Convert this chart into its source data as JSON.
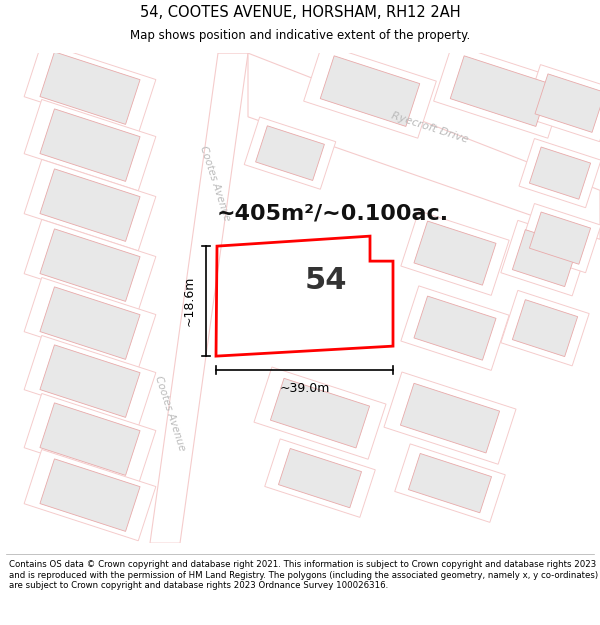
{
  "title": "54, COOTES AVENUE, HORSHAM, RH12 2AH",
  "subtitle": "Map shows position and indicative extent of the property.",
  "footer": "Contains OS data © Crown copyright and database right 2021. This information is subject to Crown copyright and database rights 2023 and is reproduced with the permission of HM Land Registry. The polygons (including the associated geometry, namely x, y co-ordinates) are subject to Crown copyright and database rights 2023 Ordnance Survey 100026316.",
  "area_label": "~405m²/~0.100ac.",
  "number_label": "54",
  "dim_width": "~39.0m",
  "dim_height": "~18.6m",
  "street_cootes_upper": "Cootes Avenue",
  "street_cootes_lower": "Cootes Avenue",
  "street_ryecroft": "Ryecroft Drive",
  "bg_color": "#ffffff",
  "map_bg": "#ffffff",
  "building_fill": "#e8e8e8",
  "building_edge": "#e8aaaa",
  "plot_outline": "#f5cccc",
  "highlight_color": "#ff0000",
  "road_outline": "#e8aaaa",
  "street_color": "#bbbbbb",
  "title_fontsize": 10.5,
  "subtitle_fontsize": 8.5,
  "footer_fontsize": 6.2,
  "area_fontsize": 16,
  "number_fontsize": 22,
  "dim_fontsize": 9
}
